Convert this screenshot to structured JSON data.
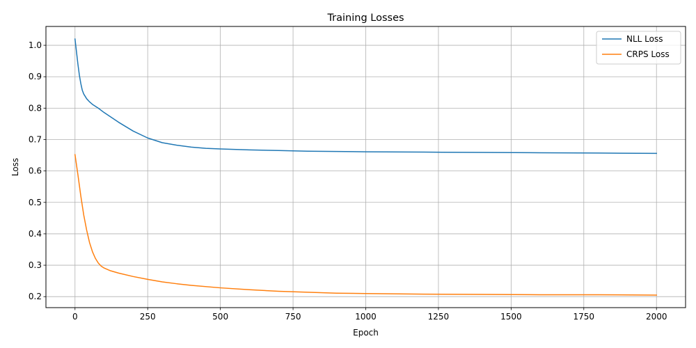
{
  "chart_data": {
    "type": "line",
    "title": "Training Losses",
    "xlabel": "Epoch",
    "ylabel": "Loss",
    "xlim": [
      -100,
      2100
    ],
    "ylim": [
      0.165,
      1.06
    ],
    "xticks": [
      0,
      250,
      500,
      750,
      1000,
      1250,
      1500,
      1750,
      2000
    ],
    "xtick_labels": [
      "0",
      "250",
      "500",
      "750",
      "1000",
      "1250",
      "1500",
      "1750",
      "2000"
    ],
    "yticks": [
      0.2,
      0.3,
      0.4,
      0.5,
      0.6,
      0.7,
      0.8,
      0.9,
      1.0
    ],
    "ytick_labels": [
      "0.2",
      "0.3",
      "0.4",
      "0.5",
      "0.6",
      "0.7",
      "0.8",
      "0.9",
      "1.0"
    ],
    "grid": true,
    "legend_position": "top-right",
    "series": [
      {
        "name": "NLL Loss",
        "color": "#1f77b4",
        "x": [
          0,
          5,
          10,
          15,
          20,
          25,
          30,
          40,
          50,
          60,
          80,
          100,
          150,
          200,
          250,
          300,
          350,
          400,
          450,
          500,
          600,
          700,
          800,
          900,
          1000,
          1200,
          1400,
          1600,
          1800,
          2000
        ],
        "y": [
          1.02,
          0.98,
          0.94,
          0.905,
          0.878,
          0.857,
          0.845,
          0.83,
          0.82,
          0.812,
          0.8,
          0.786,
          0.755,
          0.727,
          0.705,
          0.69,
          0.682,
          0.676,
          0.672,
          0.67,
          0.667,
          0.665,
          0.663,
          0.662,
          0.661,
          0.66,
          0.659,
          0.658,
          0.657,
          0.656
        ]
      },
      {
        "name": "CRPS Loss",
        "color": "#ff7f0e",
        "x": [
          0,
          10,
          20,
          30,
          40,
          50,
          60,
          70,
          80,
          90,
          100,
          120,
          150,
          200,
          250,
          300,
          350,
          400,
          500,
          600,
          700,
          800,
          900,
          1000,
          1200,
          1400,
          1600,
          1800,
          2000
        ],
        "y": [
          0.652,
          0.588,
          0.52,
          0.46,
          0.412,
          0.372,
          0.343,
          0.322,
          0.307,
          0.297,
          0.291,
          0.283,
          0.275,
          0.264,
          0.255,
          0.247,
          0.241,
          0.236,
          0.228,
          0.222,
          0.217,
          0.214,
          0.211,
          0.21,
          0.208,
          0.207,
          0.206,
          0.206,
          0.205
        ]
      }
    ]
  }
}
